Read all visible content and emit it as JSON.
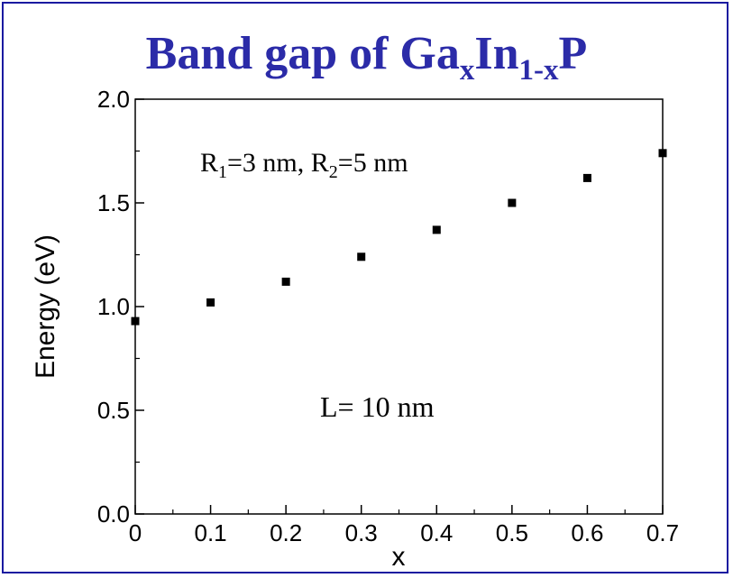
{
  "title": {
    "main": "Band gap of Ga",
    "sub1": "x",
    "mid": "In",
    "sub2": "1-x",
    "end": "P"
  },
  "colors": {
    "frame": "#1a1aa0",
    "title": "#2b2ba8",
    "marker": "#000000"
  },
  "chart_data": {
    "type": "scatter",
    "title": "Band gap of GaxIn1-xP",
    "xlabel": "x",
    "ylabel": "Energy (eV)",
    "xlim": [
      0,
      0.7
    ],
    "ylim": [
      0,
      2.0
    ],
    "x_ticks": [
      "0",
      "0.1",
      "0.2",
      "0.3",
      "0.4",
      "0.5",
      "0.6",
      "0.7"
    ],
    "y_ticks": [
      "0.0",
      "0.5",
      "1.0",
      "1.5",
      "2.0"
    ],
    "grid": false,
    "series": [
      {
        "x": [
          0,
          0.1,
          0.2,
          0.3,
          0.4,
          0.5,
          0.6,
          0.7
        ],
        "y": [
          0.93,
          1.02,
          1.12,
          1.24,
          1.37,
          1.5,
          1.62,
          1.74
        ]
      }
    ],
    "annotations": {
      "radii": {
        "r1_main": "R",
        "r1_sub": "1",
        "r1_rest": "=3 nm, R",
        "r2_sub": "2",
        "r2_rest": "=5 nm"
      },
      "length": "L= 10 nm"
    }
  }
}
